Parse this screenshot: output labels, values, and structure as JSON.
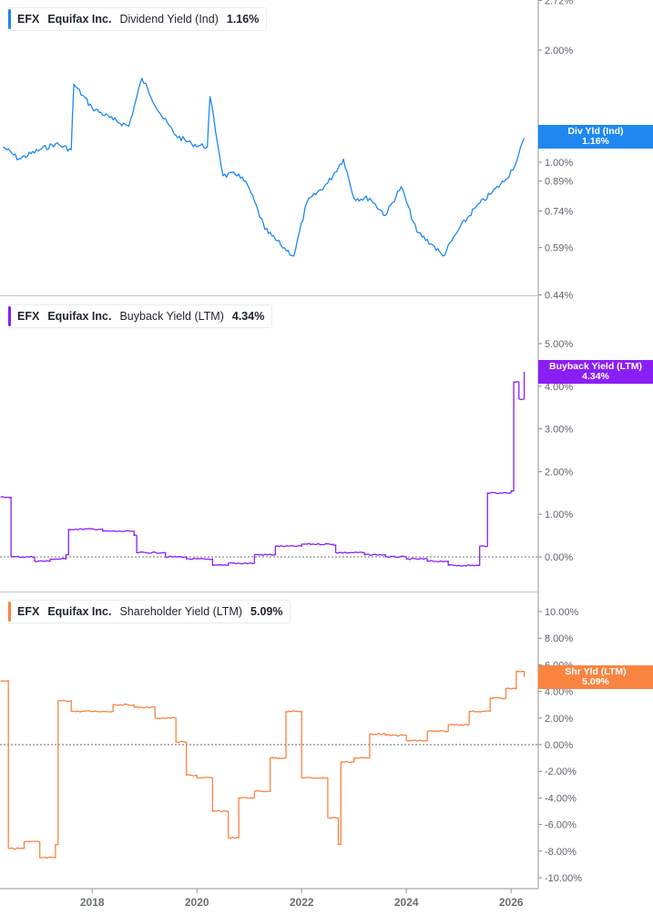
{
  "panels": [
    {
      "ticker": "EFX",
      "company": "Equifax Inc.",
      "metric": "Dividend Yield (Ind)",
      "value": "1.16%",
      "color": "#1e88f0",
      "tag_label": "Div Yld (Ind)",
      "tag_value": "1.16%"
    },
    {
      "ticker": "EFX",
      "company": "Equifax Inc.",
      "metric": "Buyback Yield (LTM)",
      "value": "4.34%",
      "color": "#8a1ff5",
      "tag_label": "Buyback Yield (LTM)",
      "tag_value": "4.34%"
    },
    {
      "ticker": "EFX",
      "company": "Equifax Inc.",
      "metric": "Shareholder Yield (LTM)",
      "value": "5.09%",
      "color": "#f98440",
      "tag_label": "Shr Yld (LTM)",
      "tag_value": "5.09%"
    }
  ],
  "chart_data": [
    {
      "type": "line",
      "title": "EFX Equifax Inc. Dividend Yield (Ind) 1.16%",
      "xlabel": "",
      "ylabel": "",
      "scale": "log",
      "y_ticks": [
        "2.72%",
        "2.00%",
        "1.00%",
        "0.89%",
        "0.74%",
        "0.59%",
        "0.44%"
      ],
      "ylim": [
        0.44,
        2.72
      ],
      "x": [
        2016.3,
        2016.6,
        2017.0,
        2017.3,
        2017.6,
        2017.65,
        2018.0,
        2018.4,
        2018.7,
        2018.95,
        2019.3,
        2019.6,
        2019.9,
        2020.2,
        2020.25,
        2020.5,
        2020.8,
        2021.0,
        2021.3,
        2021.6,
        2021.85,
        2022.1,
        2022.5,
        2022.8,
        2023.0,
        2023.3,
        2023.6,
        2023.9,
        2024.2,
        2024.5,
        2024.7,
        2025.0,
        2025.3,
        2025.6,
        2025.9,
        2026.1,
        2026.25
      ],
      "values": [
        1.1,
        1.02,
        1.08,
        1.12,
        1.08,
        1.62,
        1.4,
        1.3,
        1.25,
        1.68,
        1.35,
        1.18,
        1.12,
        1.1,
        1.5,
        0.92,
        0.93,
        0.85,
        0.66,
        0.6,
        0.56,
        0.78,
        0.88,
        1.02,
        0.8,
        0.8,
        0.72,
        0.86,
        0.65,
        0.6,
        0.56,
        0.66,
        0.75,
        0.82,
        0.9,
        1.0,
        1.16
      ],
      "last_value": 1.16,
      "grid": false
    },
    {
      "type": "line",
      "title": "EFX Equifax Inc. Buyback Yield (LTM) 4.34%",
      "xlabel": "",
      "ylabel": "",
      "y_ticks": [
        "5.00%",
        "4.00%",
        "3.00%",
        "2.00%",
        "1.00%",
        "0.00%"
      ],
      "ylim": [
        -0.4,
        5.5
      ],
      "x": [
        2016.25,
        2016.4,
        2016.45,
        2016.9,
        2017.2,
        2017.5,
        2017.55,
        2018.2,
        2018.8,
        2018.85,
        2019.4,
        2019.8,
        2020.3,
        2020.6,
        2021.1,
        2021.5,
        2022.0,
        2022.6,
        2022.65,
        2023.2,
        2023.6,
        2024.0,
        2024.4,
        2024.8,
        2025.1,
        2025.4,
        2025.55,
        2025.8,
        2026.0,
        2026.05,
        2026.15,
        2026.25
      ],
      "values": [
        1.4,
        1.4,
        0.0,
        -0.1,
        -0.05,
        0.05,
        0.65,
        0.6,
        0.5,
        0.1,
        0.0,
        -0.05,
        -0.2,
        -0.15,
        0.05,
        0.25,
        0.3,
        0.28,
        0.1,
        0.05,
        0.0,
        -0.05,
        -0.1,
        -0.2,
        -0.2,
        0.25,
        1.5,
        1.5,
        1.55,
        4.1,
        3.7,
        4.34
      ],
      "reference_line": 0,
      "last_value": 4.34,
      "grid": false
    },
    {
      "type": "line",
      "title": "EFX Equifax Inc. Shareholder Yield (LTM) 5.09%",
      "xlabel": "",
      "ylabel": "",
      "y_ticks": [
        "10.00%",
        "8.00%",
        "6.00%",
        "4.00%",
        "2.00%",
        "0.00%",
        "-2.00%",
        "-4.00%",
        "-6.00%",
        "-8.00%",
        "-10.00%"
      ],
      "ylim": [
        -10,
        10
      ],
      "x": [
        2016.25,
        2016.3,
        2016.4,
        2016.7,
        2017.0,
        2017.3,
        2017.35,
        2017.6,
        2018.0,
        2018.4,
        2018.8,
        2019.2,
        2019.6,
        2019.8,
        2020.0,
        2020.3,
        2020.6,
        2020.8,
        2021.1,
        2021.4,
        2021.65,
        2021.7,
        2022.0,
        2022.3,
        2022.5,
        2022.7,
        2022.75,
        2023.0,
        2023.3,
        2023.6,
        2024.0,
        2024.4,
        2024.8,
        2025.2,
        2025.6,
        2025.9,
        2026.1,
        2026.25
      ],
      "values": [
        4.8,
        4.8,
        -7.8,
        -7.3,
        -8.5,
        -7.5,
        3.3,
        2.5,
        2.5,
        3.0,
        2.8,
        2.0,
        0.2,
        -2.3,
        -2.5,
        -5.0,
        -7.0,
        -4.0,
        -3.5,
        -1.0,
        -1.0,
        2.5,
        -2.5,
        -2.5,
        -5.5,
        -7.5,
        -1.3,
        -1.0,
        0.8,
        0.7,
        0.3,
        1.0,
        1.5,
        2.5,
        3.5,
        4.2,
        5.5,
        5.09
      ],
      "reference_line": 0,
      "last_value": 5.09,
      "grid": false
    }
  ],
  "x_axis": {
    "ticks": [
      "2018",
      "2020",
      "2022",
      "2024",
      "2026"
    ]
  }
}
